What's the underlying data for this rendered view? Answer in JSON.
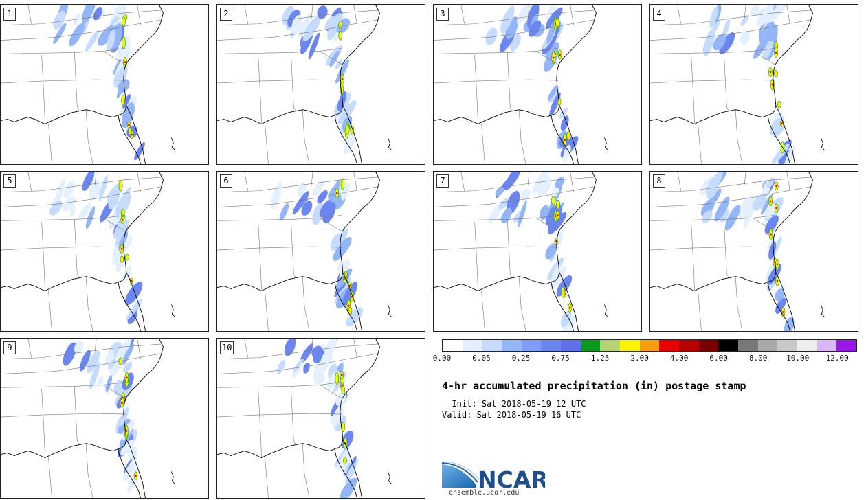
{
  "panels": [
    {
      "label": "1"
    },
    {
      "label": "2"
    },
    {
      "label": "3"
    },
    {
      "label": "4"
    },
    {
      "label": "5"
    },
    {
      "label": "6"
    },
    {
      "label": "7"
    },
    {
      "label": "8"
    },
    {
      "label": "9"
    },
    {
      "label": "10"
    }
  ],
  "colorbar": {
    "colors": [
      "#ffffff",
      "#e4f0ff",
      "#c6dcff",
      "#94b6f6",
      "#7e9ef6",
      "#6c86f0",
      "#6070e8",
      "#0a9a20",
      "#b4d474",
      "#f8f400",
      "#f89c10",
      "#e60000",
      "#b80000",
      "#780000",
      "#000000",
      "#787878",
      "#a8a8a8",
      "#c8c8c8",
      "#eeeeee",
      "#dcb4f8",
      "#9a18e6"
    ],
    "tick_labels": [
      "0.00",
      "0.05",
      "0.25",
      "0.75",
      "1.25",
      "2.00",
      "4.00",
      "6.00",
      "8.00",
      "10.00",
      "12.00"
    ]
  },
  "title": "4-hr accumulated precipitation (in) postage stamp",
  "init": "  Init: Sat 2018-05-19 12 UTC",
  "valid": "Valid: Sat 2018-05-19 16 UTC",
  "logo": {
    "text": "NCAR",
    "url": "ensemble.ucar.edu",
    "color": "#1d4f8a"
  }
}
